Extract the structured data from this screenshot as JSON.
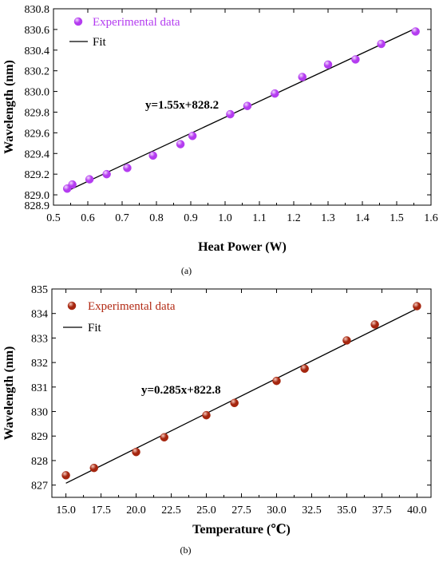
{
  "chart_data": [
    {
      "type": "scatter",
      "xlabel": "Heat Power (W)",
      "ylabel": "Wavelength (nm)",
      "xlim": [
        0.5,
        1.6
      ],
      "ylim": [
        828.9,
        830.8
      ],
      "xticks": [
        "0.5",
        "0.6",
        "0.7",
        "0.8",
        "0.9",
        "1.0",
        "1.1",
        "1.2",
        "1.3",
        "1.4",
        "1.5",
        "1.6"
      ],
      "yticks": [
        "828.9",
        "829.0",
        "829.2",
        "829.4",
        "829.6",
        "829.8",
        "830.0",
        "830.2",
        "830.4",
        "830.6",
        "830.8"
      ],
      "legend": {
        "placement": "top-left",
        "data_label": "Experimental data",
        "fit_label": "Fit"
      },
      "equation": "y=1.55x+828.2",
      "fit": {
        "slope": 1.55,
        "intercept": 828.2
      },
      "colors": {
        "points": "#b43cf0",
        "points_highlight": "#f3d9ff",
        "legend_text": "#b43cf0",
        "fit": "#000000"
      },
      "caption": "(a)",
      "series": [
        {
          "name": "Experimental data",
          "x": [
            0.54,
            0.555,
            0.605,
            0.655,
            0.715,
            0.79,
            0.87,
            0.905,
            1.015,
            1.065,
            1.145,
            1.225,
            1.3,
            1.38,
            1.455,
            1.555
          ],
          "y": [
            829.06,
            829.1,
            829.15,
            829.2,
            829.26,
            829.38,
            829.49,
            829.57,
            829.78,
            829.86,
            829.98,
            830.14,
            830.26,
            830.31,
            830.46,
            830.58
          ]
        }
      ]
    },
    {
      "type": "scatter",
      "xlabel": "Temperature (℃)",
      "ylabel": "Wavelength (nm)",
      "xlim": [
        14,
        41
      ],
      "ylim": [
        826.5,
        835
      ],
      "xticks": [
        "15.0",
        "17.5",
        "20.0",
        "22.5",
        "25.0",
        "27.5",
        "30.0",
        "32.5",
        "35.0",
        "37.5",
        "40.0"
      ],
      "yticks": [
        "827",
        "828",
        "829",
        "830",
        "831",
        "832",
        "833",
        "834",
        "835"
      ],
      "legend": {
        "placement": "top-left",
        "data_label": "Experimental data",
        "fit_label": "Fit"
      },
      "equation": "y=0.285x+822.8",
      "fit": {
        "slope": 0.285,
        "intercept": 822.8
      },
      "colors": {
        "points": "#a5260f",
        "points_highlight": "#f6c9bc",
        "legend_text": "#b22a14",
        "fit": "#000000"
      },
      "caption": "(b)",
      "series": [
        {
          "name": "Experimental data",
          "x": [
            15,
            17,
            20,
            22,
            25,
            27,
            30,
            32,
            35,
            37,
            40
          ],
          "y": [
            827.4,
            827.7,
            828.35,
            828.95,
            829.85,
            830.35,
            831.25,
            831.75,
            832.9,
            833.55,
            834.3
          ]
        }
      ]
    }
  ]
}
